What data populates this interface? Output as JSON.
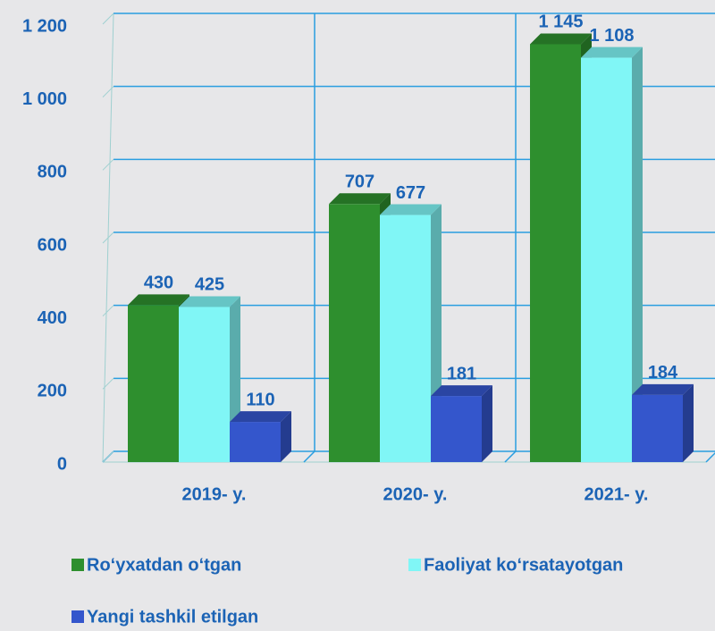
{
  "chart_data": {
    "type": "bar",
    "categories": [
      "2019- y.",
      "2020- y.",
      "2021- y."
    ],
    "series": [
      {
        "name": "Ro‘yxatdan o‘tgan",
        "color": "#2e8f2e",
        "values": [
          430,
          707,
          1145
        ],
        "value_labels": [
          "430",
          "707",
          "1 145"
        ]
      },
      {
        "name": "Faoliyat ko‘rsatayotgan",
        "color": "#80f6f6",
        "values": [
          425,
          677,
          1108
        ],
        "value_labels": [
          "425",
          "677",
          "1 108"
        ]
      },
      {
        "name": "Yangi tashkil etilgan",
        "color": "#3456cc",
        "values": [
          110,
          181,
          184
        ],
        "value_labels": [
          "110",
          "181",
          "184"
        ]
      }
    ],
    "ylim": [
      0,
      1200
    ],
    "yticks": [
      0,
      200,
      400,
      600,
      800,
      {
        "value": 1000,
        "label": "1 000"
      },
      {
        "value": 1200,
        "label": "1 200"
      }
    ],
    "grid": true,
    "legend": "bottom"
  }
}
